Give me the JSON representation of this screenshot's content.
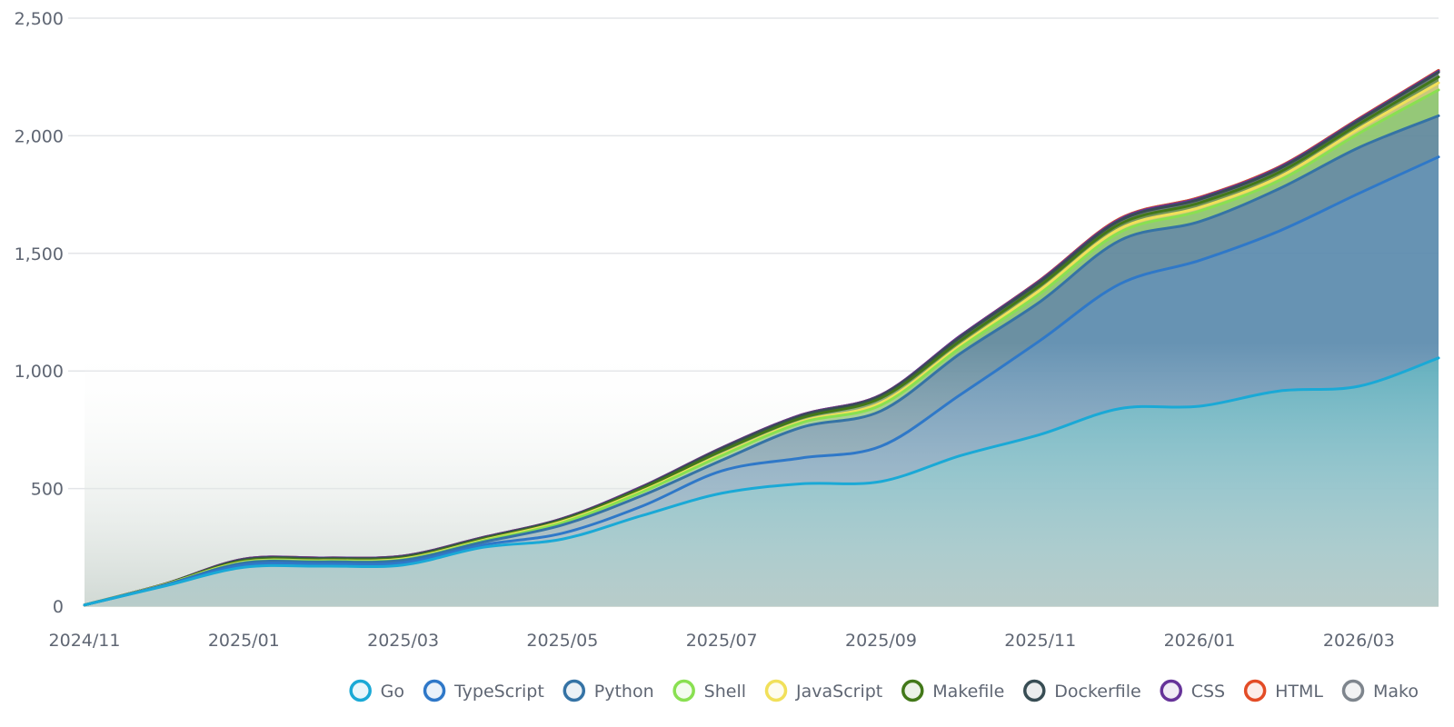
{
  "chart_data": {
    "type": "area",
    "stacked": true,
    "x": [
      "2024/11",
      "2024/12",
      "2025/01",
      "2025/02",
      "2025/03",
      "2025/04",
      "2025/05",
      "2025/06",
      "2025/07",
      "2025/08",
      "2025/09",
      "2025/10",
      "2025/11",
      "2025/12",
      "2026/01",
      "2026/02",
      "2026/03",
      "2026/04"
    ],
    "x_tick_labels": [
      "2024/11",
      "2025/01",
      "2025/03",
      "2025/05",
      "2025/07",
      "2025/09",
      "2025/11",
      "2026/01",
      "2026/03"
    ],
    "ylim": [
      0,
      2500
    ],
    "y_ticks": [
      0,
      500,
      1000,
      1500,
      2000,
      2500
    ],
    "y_tick_labels": [
      "0",
      "500",
      "1,000",
      "1,500",
      "2,000",
      "2,500"
    ],
    "grid": true,
    "legend_position": "bottom-right",
    "series": [
      {
        "name": "Go",
        "color": "#1aa9d6",
        "values": [
          5,
          85,
          165,
          170,
          175,
          250,
          285,
          385,
          480,
          520,
          530,
          640,
          730,
          840,
          850,
          915,
          935,
          1055
        ]
      },
      {
        "name": "TypeScript",
        "color": "#2f78c8",
        "values": [
          0,
          2,
          10,
          10,
          10,
          10,
          25,
          40,
          95,
          110,
          150,
          260,
          400,
          530,
          620,
          680,
          820,
          855
        ]
      },
      {
        "name": "Python",
        "color": "#3573a5",
        "values": [
          0,
          2,
          8,
          8,
          10,
          12,
          35,
          45,
          45,
          130,
          150,
          175,
          165,
          185,
          165,
          180,
          195,
          175
        ]
      },
      {
        "name": "Shell",
        "color": "#89e051",
        "values": [
          0,
          1,
          3,
          3,
          3,
          5,
          10,
          15,
          20,
          20,
          25,
          25,
          35,
          35,
          45,
          35,
          60,
          110
        ]
      },
      {
        "name": "JavaScript",
        "color": "#f1e05a",
        "values": [
          0,
          1,
          2,
          2,
          3,
          3,
          5,
          5,
          5,
          5,
          10,
          10,
          15,
          15,
          15,
          15,
          20,
          30
        ]
      },
      {
        "name": "Makefile",
        "color": "#427819",
        "values": [
          0,
          1,
          5,
          5,
          5,
          5,
          5,
          10,
          15,
          15,
          20,
          20,
          20,
          20,
          20,
          20,
          20,
          25
        ]
      },
      {
        "name": "Dockerfile",
        "color": "#384d54",
        "values": [
          0,
          1,
          5,
          5,
          5,
          5,
          5,
          5,
          10,
          10,
          10,
          15,
          15,
          15,
          15,
          15,
          15,
          20
        ]
      },
      {
        "name": "CSS",
        "color": "#663399",
        "values": [
          0,
          0,
          2,
          2,
          2,
          2,
          2,
          3,
          3,
          3,
          3,
          5,
          5,
          5,
          5,
          5,
          5,
          5
        ]
      },
      {
        "name": "HTML",
        "color": "#e34c26",
        "values": [
          0,
          0,
          0,
          0,
          0,
          0,
          0,
          0,
          0,
          0,
          0,
          0,
          2,
          3,
          3,
          3,
          3,
          3
        ]
      },
      {
        "name": "Mako",
        "color": "#7e858d",
        "values": [
          0,
          0,
          0,
          0,
          0,
          0,
          0,
          0,
          0,
          0,
          0,
          0,
          0,
          0,
          0,
          0,
          0,
          0
        ]
      }
    ]
  }
}
